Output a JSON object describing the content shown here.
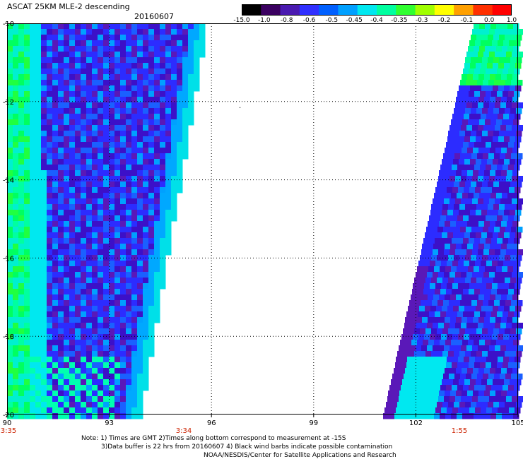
{
  "header": {
    "title": "ASCAT 25KM MLE-2 descending",
    "date": "20160607"
  },
  "colorbar": {
    "labels": [
      "-15.0",
      "-1.0",
      "-0.8",
      "-0.6",
      "-0.5",
      "-0.45",
      "-0.4",
      "-0.35",
      "-0.3",
      "-0.2",
      "-0.1",
      "0.0",
      "1.0"
    ],
    "stops": [
      "#000000",
      "#3a0060",
      "#4a1ab0",
      "#3030ff",
      "#0060ff",
      "#00a0ff",
      "#00e8f0",
      "#00ffa0",
      "#30ff30",
      "#a0ff00",
      "#ffff00",
      "#ffa000",
      "#ff3000",
      "#ff0000"
    ]
  },
  "map": {
    "lon_labels": [
      "90",
      "93",
      "96",
      "99",
      "102",
      "105"
    ],
    "lat_labels": [
      "-10",
      "-12",
      "-14",
      "-16",
      "-18",
      "-20"
    ],
    "time_labels": [
      "3:35",
      "3:34",
      "1:55"
    ],
    "time_label_color": "#cc2200"
  },
  "footer": {
    "line1": "Note: 1) Times are GMT 2)Times along bottom correspond to measurement at -15S",
    "line2": "3)Data buffer is 22 hrs from 20160607 4) Black wind barbs indicate possible contamination",
    "line3": "NOAA/NESDIS/Center for Satellite Applications and Research"
  }
}
